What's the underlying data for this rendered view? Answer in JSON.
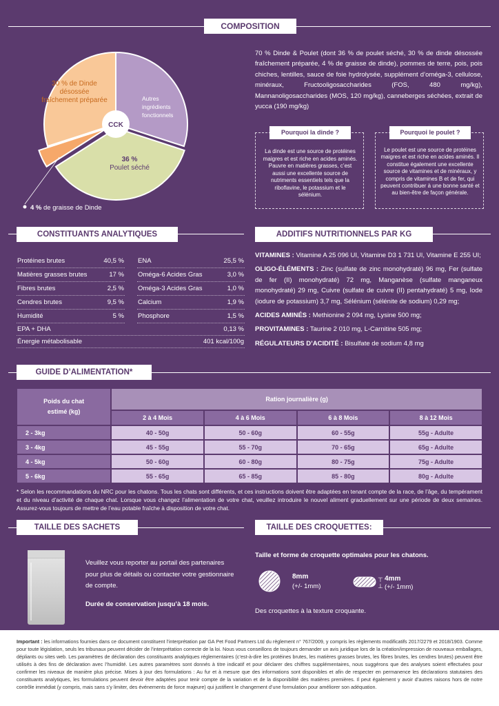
{
  "composition": {
    "title": "COMPOSITION",
    "description": "70 % Dinde & Poulet (dont 36 % de poulet séché, 30 % de dinde désossée fraîchement préparée, 4 % de graisse de dinde), pommes de terre, pois, pois chiches, lentilles, sauce de foie hydrolysée, supplément d’oméga-3, cellulose, minéraux, Fructooligosaccharides (FOS, 480 mg/kg), Mannanoligosaccharides (MOS, 120 mg/kg), canneberges séchées, extrait de yucca (190 mg/kg)",
    "chart_data": {
      "type": "pie",
      "center_label": "CCK",
      "slices": [
        {
          "label_value": "30 %",
          "label_text": "de Dinde désossée fraîchement préparée",
          "value": 30,
          "color": "#f9c898"
        },
        {
          "label_value": "",
          "label_text": "Autres ingrédients fonctionnels",
          "value": 30,
          "color": "#b49ac6"
        },
        {
          "label_value": "36 %",
          "label_text": "Poulet séché",
          "value": 36,
          "color": "#d9dfa9"
        },
        {
          "label_value": "4 %",
          "label_text": "de graisse de Dinde",
          "value": 4,
          "color": "#f6a86a"
        }
      ]
    },
    "box_turkey": {
      "title": "Pourquoi la dinde ?",
      "text": "La dinde est une source de protéines maigres et est riche en acides aminés. Pauvre en matières grasses, c’est aussi une excellente source de nutriments essentiels tels que la riboflavine, le potassium et le sélénium."
    },
    "box_chicken": {
      "title": "Pourquoi le poulet ?",
      "text": "Le poulet est une source de protéines maigres et est riche en acides aminés. Il constitue également une excellente source de vitamines et de minéraux, y compris de vitamines B et de fer, qui peuvent contribuer à une bonne santé et au bien-être de façon générale."
    }
  },
  "constituents": {
    "title": "CONSTITUANTS ANALYTIQUES",
    "pairs": [
      {
        "l": "Protéines brutes",
        "lv": "40,5 %",
        "r": "ENA",
        "rv": "25,5 %"
      },
      {
        "l": "Matières grasses brutes",
        "lv": "17 %",
        "r": "Oméga-6 Acides Gras",
        "rv": "3,0 %"
      },
      {
        "l": "Fibres brutes",
        "lv": "2,5 %",
        "r": "Oméga-3 Acides Gras",
        "rv": "1,0 %"
      },
      {
        "l": "Cendres brutes",
        "lv": "9,5 %",
        "r": "Calcium",
        "rv": "1,9 %"
      },
      {
        "l": "Humidité",
        "lv": "5 %",
        "r": "Phosphore",
        "rv": "1,5 %"
      }
    ],
    "full": [
      {
        "l": "EPA + DHA",
        "v": "0,13 %"
      },
      {
        "l": "Énergie métabolisable",
        "v": "401 kcal/100g"
      }
    ]
  },
  "additives": {
    "title": "ADDITIFS NUTRITIONNELS PAR KG",
    "items": [
      {
        "label": "VITAMINES :",
        "text": " Vitamine A 25 096 UI, Vitamine D3 1 731 UI, Vitamine E 255 UI;"
      },
      {
        "label": "OLIGO-ÉLÉMENTS :",
        "text": " Zinc (sulfate de zinc monohydraté) 96 mg, Fer (sulfate de fer (II) monohydraté) 72 mg, Manganèse (sulfate manganeux monohydraté) 29 mg, Cuivre (sulfate de cuivre (II) pentahydraté) 5 mg, Iode (iodure de potassium) 3,7 mg, Sélénium (sélénite de sodium) 0,29 mg;"
      },
      {
        "label": "ACIDES AMINÉS :",
        "text": " Methionine 2 094 mg, Lysine 500 mg;"
      },
      {
        "label": "PROVITAMINES :",
        "text": " Taurine 2 010 mg, L-Carnitine 505 mg;"
      },
      {
        "label": "RÉGULATEURS D’ACIDITÉ :",
        "text": " Bisulfate de sodium 4,8 mg"
      }
    ]
  },
  "feeding": {
    "title": "GUIDE D’ALIMENTATION*",
    "weight_header": "Poids du chat estimé (kg)",
    "ration_header": "Ration journalière (g)",
    "age_cols": [
      "2 à 4 Mois",
      "4 à 6 Mois",
      "6 à 8 Mois",
      "8 à 12 Mois"
    ],
    "rows": [
      {
        "w": "2 - 3kg",
        "v": [
          "40 - 50g",
          "50 - 60g",
          "60 - 55g",
          "55g - Adulte"
        ]
      },
      {
        "w": "3 - 4kg",
        "v": [
          "45 - 55g",
          "55 - 70g",
          "70 - 65g",
          "65g - Adulte"
        ]
      },
      {
        "w": "4 - 5kg",
        "v": [
          "50 - 60g",
          "60 - 80g",
          "80 - 75g",
          "75g - Adulte"
        ]
      },
      {
        "w": "5 - 6kg",
        "v": [
          "55 - 65g",
          "65 - 85g",
          "85 - 80g",
          "80g - Adulte"
        ]
      }
    ],
    "note": "* Selon les recommandations du NRC pour les chatons. Tous les chats sont différents, et ces instructions doivent être adaptées en tenant compte de la race, de l’âge, du tempérament et du niveau d’activité de chaque chat. Lorsque vous changez l’alimentation de votre chat, veuillez introduire le nouvel aliment graduellement sur une période de deux semaines. Assurez-vous toujours de mettre de l’eau potable fraîche à disposition de votre chat."
  },
  "sachets": {
    "title": "TAILLE DES SACHETS",
    "text": "Veuillez vous reporter au portail des partenaires pour plus de détails ou contacter votre gestionnaire de compte.",
    "shelf_life": "Durée de conservation jusqu’à 18 mois."
  },
  "kibble": {
    "title": "TAILLE DES CROQUETTES:",
    "subtitle": "Taille et forme de croquette optimales pour les chatons.",
    "diameter": "8mm",
    "diameter_tol": "(+/- 1mm)",
    "thickness": "4mm",
    "thickness_tol": "(+/- 1mm)",
    "texture": "Des croquettes à la texture croquante."
  },
  "footer": {
    "label": "Important :",
    "text": " les informations fournies dans ce document constituent l’interprétation par GA Pet Food Partners Ltd du règlement n° 767/2009, y compris les règlements modificatifs 2017/2279 et 2018/1903. Comme pour toute législation, seuls les tribunaux peuvent décider de l’interprétation correcte de la loi. Nous vous conseillons de toujours demander un avis juridique lors de la création/impression de nouveaux emballages, dépliants ou sites web. Les paramètres de déclaration des constituants analytiques réglementaires (c’est-à-dire les protéines brutes, les matières grasses brutes, les fibres brutes, les cendres brutes) peuvent être utilisés à des fins de déclaration avec l’humidité. Les autres paramètres sont donnés à titre indicatif et pour déclarer des chiffres supplémentaires, nous suggérons que des analyses soient effectuées pour confirmer les niveaux de manière plus précise. Mises à jour des formulations : Au fur et à mesure que des informations sont disponibles et afin de respecter en permanence les déclarations statutaires des constituants analytiques, les formulations peuvent devoir être adaptées pour tenir compte de la variation et de la disponibilité des matières premières. Il peut également y avoir d’autres raisons hors de notre contrôle immédiat (y compris, mais sans s’y limiter, des événements de force majeure) qui justifient le changement d’une formulation pour améliorer son adéquation."
  }
}
